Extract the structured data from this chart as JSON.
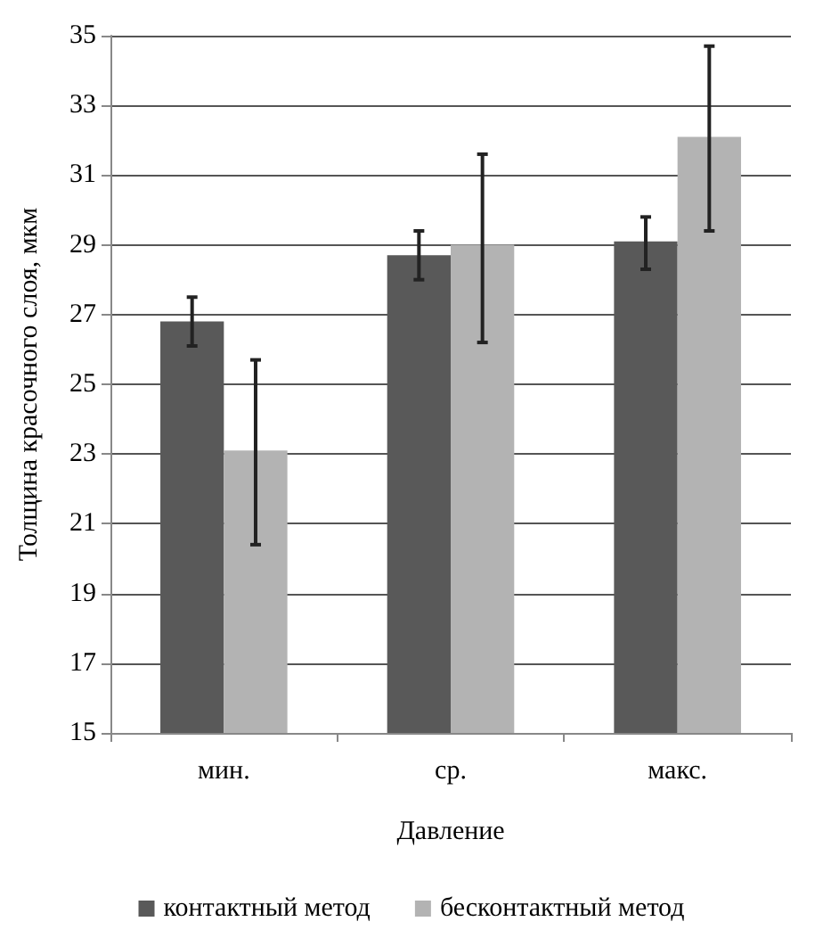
{
  "chart_data": {
    "type": "bar",
    "xlabel": "Давление",
    "ylabel": "Толщина красочного слоя, мкм",
    "categories": [
      "мин.",
      "ср.",
      "макс."
    ],
    "series": [
      {
        "name": "контактный метод",
        "color": "#595959",
        "values": [
          26.8,
          28.7,
          29.1
        ],
        "errors": [
          [
            26.1,
            27.5
          ],
          [
            28.0,
            29.4
          ],
          [
            28.3,
            29.8
          ]
        ]
      },
      {
        "name": "бесконтактный метод",
        "color": "#b3b3b3",
        "values": [
          23.1,
          29.0,
          32.1
        ],
        "errors": [
          [
            20.4,
            25.7
          ],
          [
            26.2,
            31.6
          ],
          [
            29.4,
            34.7
          ]
        ]
      }
    ],
    "ylim": [
      15,
      35
    ],
    "yticks": [
      15,
      17,
      19,
      21,
      23,
      25,
      27,
      29,
      31,
      33,
      35
    ],
    "grid": "y",
    "legend": "bottom"
  }
}
